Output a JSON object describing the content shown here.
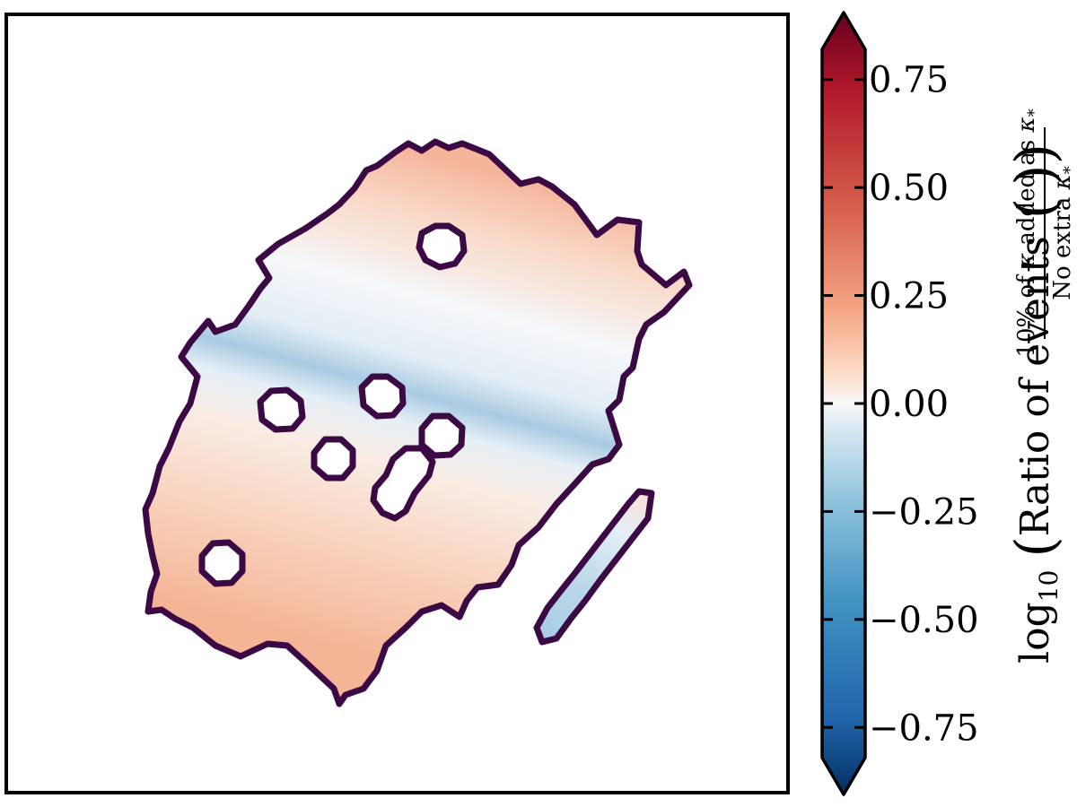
{
  "chart_data": {
    "type": "heatmap",
    "title": "",
    "xlabel": "",
    "ylabel": "",
    "colormap": "RdBu_r",
    "colorbar": {
      "vmin": -0.82,
      "vmax": 0.82,
      "extend": "both",
      "ticks": [
        0.75,
        0.5,
        0.25,
        0.0,
        -0.25,
        -0.5,
        -0.75
      ],
      "tick_labels": [
        "0.75",
        "0.50",
        "0.25",
        "0.00",
        "−0.25",
        "−0.50",
        "−0.75"
      ],
      "label": {
        "prefix": "log",
        "prefix_sub": "10",
        "main": "Ratio of events",
        "numerator_a": "10% of ",
        "numerator_kappa": "κ",
        "numerator_b": " added as ",
        "numerator_kappa_star": "κ",
        "numerator_star": "*",
        "denominator_a": "No extra ",
        "denominator_kappa": "κ",
        "denominator_star": "*"
      }
    },
    "region_outline_color": "#3b0a45",
    "colors": {
      "deep_red": "#67001f",
      "red": "#b2182b",
      "salmon": "#f4a582",
      "neutral": "#f7f7f7",
      "light_blue": "#92c5de",
      "blue": "#2166ac",
      "deep_blue": "#053061"
    }
  }
}
